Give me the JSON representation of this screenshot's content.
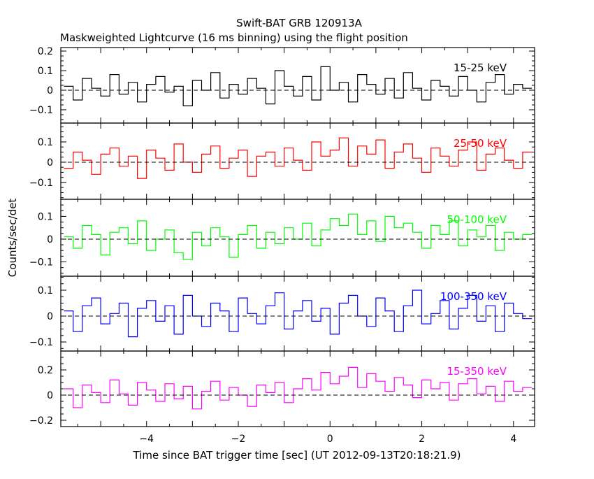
{
  "chart_data": {
    "type": "line",
    "title": "Swift-BAT GRB 120913A",
    "subtitle": "Maskweighted Lightcurve (16 ms binning) using the flight position",
    "xlabel": "Time since BAT trigger time [sec] (UT 2012-09-13T20:18:21.9)",
    "ylabel": "Counts/sec/det",
    "xlim": [
      -5.87,
      4.46
    ],
    "xticks": [
      -4,
      -2,
      0,
      2,
      4
    ],
    "grid": false,
    "zero_line": "dashed",
    "x": [
      -5.7,
      -5.5,
      -5.3,
      -5.1,
      -4.9,
      -4.7,
      -4.5,
      -4.3,
      -4.1,
      -3.9,
      -3.7,
      -3.5,
      -3.3,
      -3.1,
      -2.9,
      -2.7,
      -2.5,
      -2.3,
      -2.1,
      -1.9,
      -1.7,
      -1.5,
      -1.3,
      -1.1,
      -0.9,
      -0.7,
      -0.5,
      -0.3,
      -0.1,
      0.1,
      0.3,
      0.5,
      0.7,
      0.9,
      1.1,
      1.3,
      1.5,
      1.7,
      1.9,
      2.1,
      2.3,
      2.5,
      2.7,
      2.9,
      3.1,
      3.3,
      3.5,
      3.7,
      3.9,
      4.1,
      4.3
    ],
    "panels": [
      {
        "name": "15-25 keV",
        "color": "#000000",
        "ylim": [
          -0.168,
          0.218
        ],
        "yticks": [
          -0.1,
          0,
          0.1,
          0.2
        ],
        "ytick_labels": [
          "−0.1",
          "0",
          "0.1",
          "0.2"
        ],
        "values": [
          0.02,
          -0.05,
          0.06,
          0.01,
          -0.03,
          0.08,
          -0.02,
          0.04,
          -0.06,
          0.03,
          0.07,
          -0.01,
          0.02,
          -0.08,
          0.05,
          0.0,
          0.09,
          -0.04,
          0.03,
          -0.02,
          0.06,
          0.01,
          -0.07,
          0.1,
          0.02,
          -0.03,
          0.07,
          -0.05,
          0.12,
          0.0,
          0.04,
          -0.06,
          0.08,
          0.03,
          -0.02,
          0.06,
          -0.04,
          0.09,
          0.01,
          -0.05,
          0.05,
          0.02,
          -0.03,
          0.07,
          0.0,
          -0.06,
          0.04,
          0.08,
          -0.02,
          0.03,
          0.01
        ]
      },
      {
        "name": "25-50 keV",
        "color": "#ff0000",
        "ylim": [
          -0.183,
          0.193
        ],
        "yticks": [
          -0.1,
          0,
          0.1
        ],
        "ytick_labels": [
          "−0.1",
          "0",
          "0.1"
        ],
        "values": [
          -0.03,
          0.05,
          0.01,
          -0.06,
          0.04,
          0.07,
          -0.02,
          0.03,
          -0.08,
          0.06,
          0.02,
          -0.04,
          0.09,
          0.0,
          -0.05,
          0.04,
          0.08,
          -0.03,
          0.02,
          0.06,
          -0.07,
          0.03,
          0.05,
          -0.02,
          0.07,
          0.01,
          -0.04,
          0.1,
          0.03,
          0.06,
          0.12,
          -0.02,
          0.08,
          0.04,
          0.11,
          -0.03,
          0.05,
          0.09,
          0.02,
          -0.05,
          0.07,
          0.03,
          -0.02,
          0.06,
          0.1,
          -0.04,
          0.04,
          0.07,
          0.01,
          -0.03,
          0.05
        ]
      },
      {
        "name": "50-100 keV",
        "color": "#00ff00",
        "ylim": [
          -0.163,
          0.175
        ],
        "yticks": [
          -0.1,
          0,
          0.1
        ],
        "ytick_labels": [
          "−0.1",
          "0",
          "0.1"
        ],
        "values": [
          0.01,
          -0.04,
          0.06,
          0.02,
          -0.07,
          0.03,
          0.05,
          -0.02,
          0.08,
          -0.05,
          0.0,
          0.04,
          -0.06,
          -0.09,
          0.03,
          -0.03,
          0.05,
          0.01,
          -0.08,
          0.02,
          0.06,
          -0.04,
          0.03,
          -0.02,
          0.05,
          0.0,
          0.07,
          -0.03,
          0.04,
          0.09,
          0.06,
          0.11,
          0.02,
          0.08,
          -0.01,
          0.1,
          0.05,
          0.07,
          0.03,
          -0.04,
          0.06,
          0.02,
          0.08,
          -0.03,
          0.04,
          0.01,
          0.06,
          -0.05,
          0.03,
          0.0,
          0.02
        ]
      },
      {
        "name": "100-350 keV",
        "color": "#0000ff",
        "ylim": [
          -0.135,
          0.154
        ],
        "yticks": [
          -0.1,
          0,
          0.1
        ],
        "ytick_labels": [
          "−0.1",
          "0",
          "0.1"
        ],
        "values": [
          0.02,
          -0.06,
          0.04,
          0.07,
          -0.03,
          0.01,
          0.05,
          -0.08,
          0.03,
          0.06,
          -0.02,
          0.04,
          -0.07,
          0.08,
          0.0,
          -0.04,
          0.05,
          0.02,
          -0.06,
          0.07,
          0.01,
          -0.03,
          0.04,
          0.09,
          -0.05,
          0.02,
          0.06,
          -0.02,
          0.03,
          -0.07,
          0.05,
          0.08,
          0.0,
          -0.04,
          0.07,
          0.02,
          -0.06,
          0.04,
          0.1,
          -0.03,
          0.01,
          0.06,
          -0.05,
          0.03,
          0.08,
          -0.02,
          0.04,
          -0.06,
          0.05,
          0.01,
          -0.01
        ]
      },
      {
        "name": "15-350 keV",
        "color": "#ff00ff",
        "ylim": [
          -0.25,
          0.35
        ],
        "yticks": [
          -0.2,
          0,
          0.2
        ],
        "ytick_labels": [
          "−0.2",
          "0",
          "0.2"
        ],
        "values": [
          0.05,
          -0.1,
          0.08,
          0.02,
          -0.06,
          0.12,
          0.01,
          -0.08,
          0.1,
          0.04,
          -0.05,
          0.09,
          -0.03,
          0.07,
          -0.11,
          0.03,
          0.11,
          -0.04,
          0.06,
          0.0,
          -0.09,
          0.08,
          0.02,
          0.1,
          -0.06,
          0.05,
          0.13,
          0.04,
          0.18,
          0.09,
          0.15,
          0.22,
          0.06,
          0.17,
          0.11,
          0.03,
          0.14,
          0.08,
          -0.02,
          0.12,
          0.05,
          0.1,
          -0.04,
          0.09,
          0.13,
          0.01,
          0.07,
          -0.05,
          0.11,
          0.03,
          0.06
        ]
      }
    ],
    "xtick_labels": [
      "−4",
      "−2",
      "0",
      "2",
      "4"
    ]
  }
}
